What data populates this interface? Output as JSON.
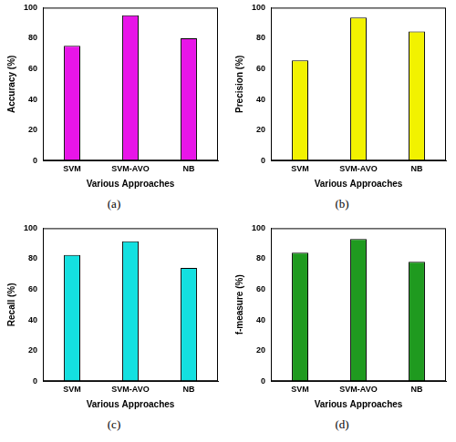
{
  "chart_data": [
    {
      "type": "bar",
      "caption": "(a)",
      "x_label": "Various Approaches",
      "y_label": "Accuracy (%)",
      "categories": [
        "SVM",
        "SVM-AVO",
        "NB"
      ],
      "values": [
        75,
        95,
        80
      ],
      "color": "#e815e8",
      "ylim": [
        0,
        100
      ],
      "yticks": [
        0,
        20,
        40,
        60,
        80,
        100
      ],
      "grid": false
    },
    {
      "type": "bar",
      "caption": "(b)",
      "x_label": "Various Approaches",
      "y_label": "Precision (%)",
      "categories": [
        "SVM",
        "SVM-AVO",
        "NB"
      ],
      "values": [
        65.5,
        93.5,
        84.5
      ],
      "color": "#f2f200",
      "ylim": [
        0,
        100
      ],
      "yticks": [
        0,
        20,
        40,
        60,
        80,
        100
      ],
      "grid": false
    },
    {
      "type": "bar",
      "caption": "(c)",
      "x_label": "Various Approaches",
      "y_label": "Recall (%)",
      "categories": [
        "SVM",
        "SVM-AVO",
        "NB"
      ],
      "values": [
        82.5,
        91.5,
        74
      ],
      "color": "#14e0e0",
      "ylim": [
        0,
        100
      ],
      "yticks": [
        0,
        20,
        40,
        60,
        80,
        100
      ],
      "grid": false
    },
    {
      "type": "bar",
      "caption": "(d)",
      "x_label": "Various Approaches",
      "y_label": "f-measure (%)",
      "categories": [
        "SVM",
        "SVM-AVO",
        "NB"
      ],
      "values": [
        84,
        93,
        78
      ],
      "color": "#1f9a1f",
      "ylim": [
        0,
        100
      ],
      "yticks": [
        0,
        20,
        40,
        60,
        80,
        100
      ],
      "grid": false
    }
  ]
}
